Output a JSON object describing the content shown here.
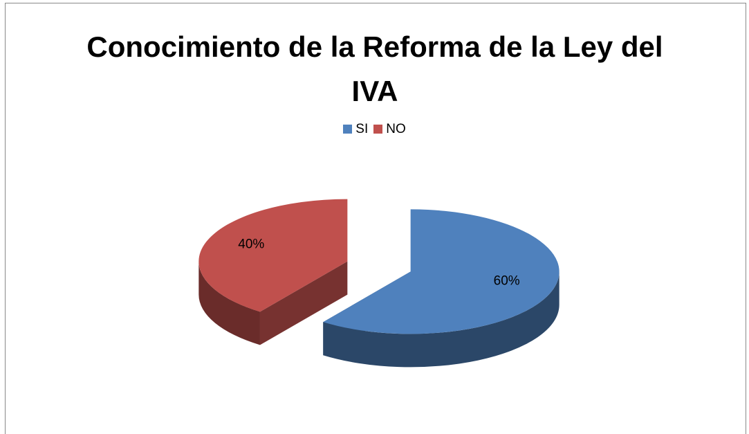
{
  "chart_data": {
    "type": "pie",
    "title": "Conocimiento de la Reforma de la Ley del IVA",
    "categories": [
      "SI",
      "NO"
    ],
    "values": [
      60,
      40
    ],
    "value_labels": [
      "60%",
      "40%"
    ],
    "colors": [
      "#4f81bd",
      "#c0504d"
    ],
    "legend": "top",
    "three_d": true
  }
}
